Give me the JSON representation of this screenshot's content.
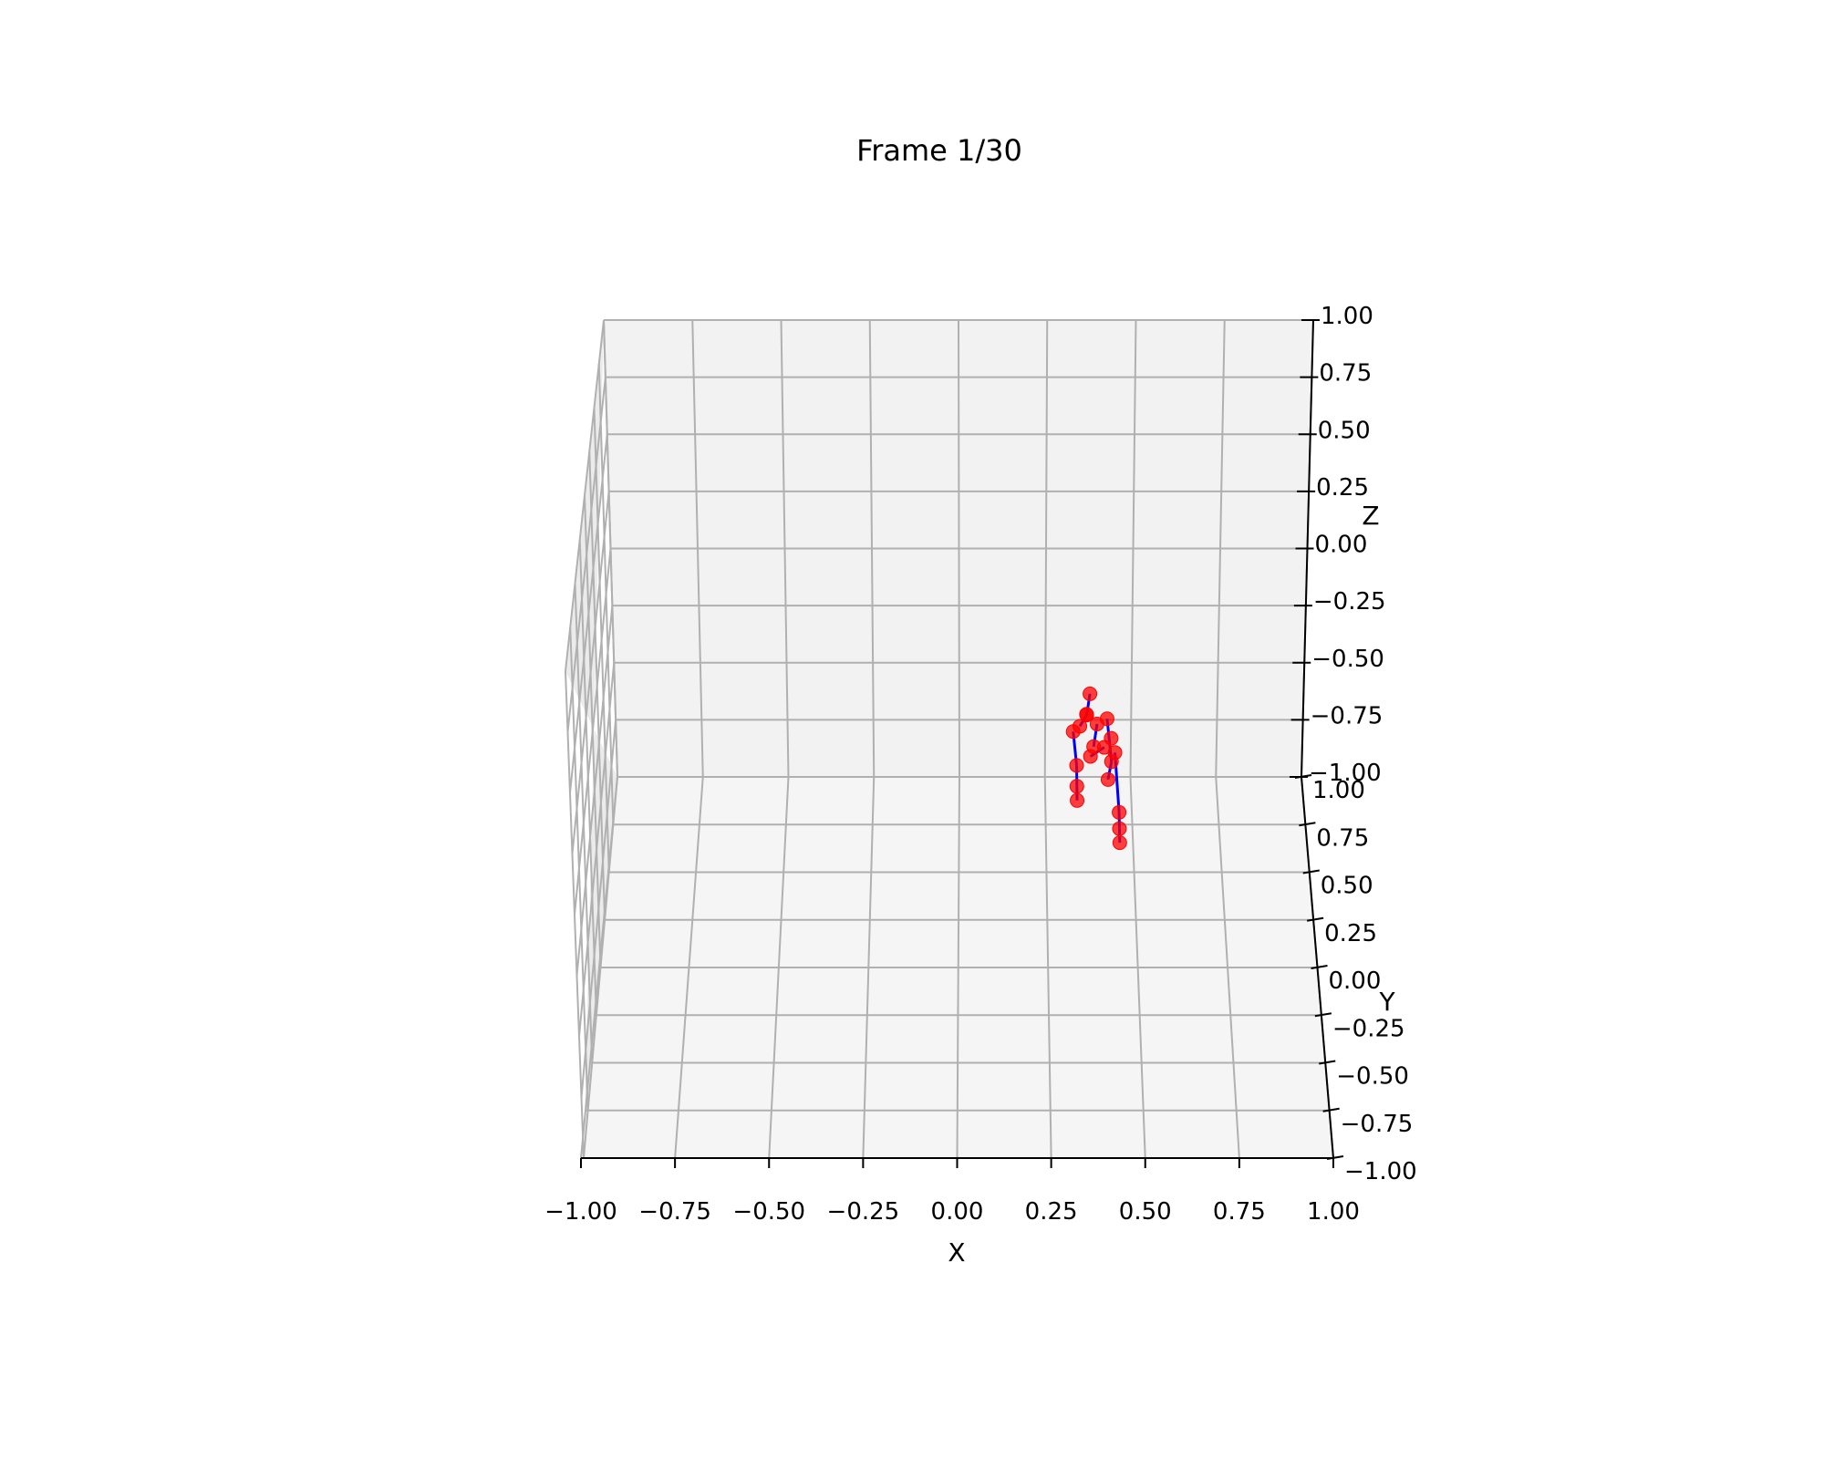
{
  "chart_data": {
    "type": "scatter",
    "projection": "3d",
    "title": "Frame 1/30",
    "xlabel": "X",
    "ylabel": "Y",
    "zlabel": "Z",
    "xlim": [
      -1.0,
      1.0
    ],
    "ylim": [
      -1.0,
      1.0
    ],
    "zlim": [
      -1.0,
      1.0
    ],
    "x_ticks": [
      -1.0,
      -0.75,
      -0.5,
      -0.25,
      0.0,
      0.25,
      0.5,
      0.75,
      1.0
    ],
    "x_tick_labels": [
      "−1.00",
      "−0.75",
      "−0.50",
      "−0.25",
      "0.00",
      "0.25",
      "0.50",
      "0.75",
      "1.00"
    ],
    "y_ticks": [
      1.0,
      0.75,
      0.5,
      0.25,
      0.0,
      -0.25,
      -0.5,
      -0.75,
      -1.0
    ],
    "y_tick_labels": [
      "1.00",
      "0.75",
      "0.50",
      "0.25",
      "0.00",
      "−0.25",
      "−0.50",
      "−0.75",
      "−1.00"
    ],
    "z_ticks": [
      1.0,
      0.75,
      0.5,
      0.25,
      0.0,
      -0.25,
      -0.5,
      -0.75,
      -1.0
    ],
    "z_tick_labels": [
      "1.00",
      "0.75",
      "0.50",
      "0.25",
      "0.00",
      "−0.25",
      "−0.50",
      "−0.75",
      "−1.00"
    ],
    "grid": true,
    "point_color": "#ff0000",
    "edge_color": "#0000ff",
    "pane_color": "#f2f2f2",
    "grid_color": "#b0b0b0",
    "points": [
      {
        "x": 0.38,
        "y": 0.9,
        "z": -0.55
      },
      {
        "x": 0.37,
        "y": 0.85,
        "z": -0.6
      },
      {
        "x": 0.33,
        "y": 0.8,
        "z": -0.63
      },
      {
        "x": 0.35,
        "y": 0.85,
        "z": -0.65
      },
      {
        "x": 0.37,
        "y": 0.9,
        "z": -0.64
      },
      {
        "x": 0.4,
        "y": 0.85,
        "z": -0.64
      },
      {
        "x": 0.43,
        "y": 0.9,
        "z": -0.66
      },
      {
        "x": 0.44,
        "y": 0.8,
        "z": -0.66
      },
      {
        "x": 0.45,
        "y": 0.75,
        "z": -0.68
      },
      {
        "x": 0.42,
        "y": 0.8,
        "z": -0.7
      },
      {
        "x": 0.38,
        "y": 0.8,
        "z": -0.74
      },
      {
        "x": 0.39,
        "y": 0.85,
        "z": -0.74
      },
      {
        "x": 0.44,
        "y": 0.75,
        "z": -0.72
      },
      {
        "x": 0.43,
        "y": 0.75,
        "z": -0.8
      },
      {
        "x": 0.34,
        "y": 0.8,
        "z": -0.78
      },
      {
        "x": 0.34,
        "y": 0.75,
        "z": -0.83
      },
      {
        "x": 0.34,
        "y": 0.7,
        "z": -0.85
      },
      {
        "x": 0.46,
        "y": 0.65,
        "z": -0.86
      },
      {
        "x": 0.46,
        "y": 0.6,
        "z": -0.89
      },
      {
        "x": 0.46,
        "y": 0.55,
        "z": -0.91
      }
    ],
    "edges": [
      [
        2,
        14
      ],
      [
        14,
        15
      ],
      [
        15,
        16
      ],
      [
        8,
        17
      ],
      [
        17,
        18
      ],
      [
        18,
        19
      ],
      [
        0,
        1
      ],
      [
        1,
        3
      ],
      [
        5,
        11
      ],
      [
        6,
        12
      ],
      [
        12,
        13
      ],
      [
        9,
        10
      ]
    ]
  }
}
